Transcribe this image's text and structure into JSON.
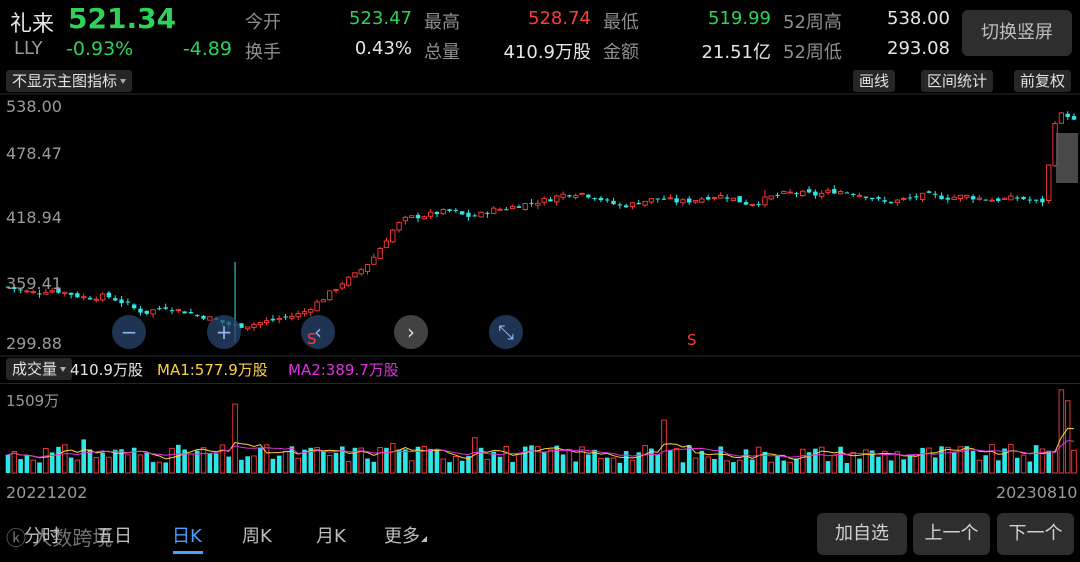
{
  "quote": {
    "name": "礼来",
    "price": "521.34",
    "ticker": "LLY",
    "change_pct": "-0.93%",
    "change": "-4.89",
    "stats": [
      {
        "label": "今开",
        "value": "523.47",
        "color": "#2ed25a"
      },
      {
        "label": "最高",
        "value": "528.74",
        "color": "#ff3b3b"
      },
      {
        "label": "最低",
        "value": "519.99",
        "color": "#2ed25a"
      },
      {
        "label": "52周高",
        "value": "538.00",
        "color": "#e6e6e6"
      },
      {
        "label": "换手",
        "value": "0.43%",
        "color": "#e6e6e6"
      },
      {
        "label": "总量",
        "value": "410.9万股",
        "color": "#e6e6e6"
      },
      {
        "label": "金额",
        "value": "21.51亿",
        "color": "#e6e6e6"
      },
      {
        "label": "52周低",
        "value": "293.08",
        "color": "#e6e6e6"
      }
    ],
    "switch_label": "切换竖屏"
  },
  "toolbar": {
    "indicator_label": "不显示主图指标",
    "draw_label": "画线",
    "range_stats_label": "区间统计",
    "adjust_label": "前复权"
  },
  "price_axis": [
    "538.00",
    "478.47",
    "418.94",
    "359.41",
    "299.88"
  ],
  "nav_icons": [
    "zoom-out-icon",
    "zoom-in-icon",
    "scroll-left-icon",
    "scroll-right-icon",
    "fit-icon"
  ],
  "volume": {
    "selector_label": "成交量",
    "current": "410.9万股",
    "ma1": "MA1:577.9万股",
    "ma2": "MA2:389.7万股",
    "max_label": "1509万",
    "ma1_color": "#ffd23f",
    "ma2_color": "#e030e0"
  },
  "dates": {
    "start": "20221202",
    "end": "20230810"
  },
  "tabs": [
    {
      "label": "分时",
      "active": false
    },
    {
      "label": "五日",
      "active": false
    },
    {
      "label": "日K",
      "active": true
    },
    {
      "label": "周K",
      "active": false
    },
    {
      "label": "月K",
      "active": false
    },
    {
      "label": "更多",
      "active": false
    }
  ],
  "buttons": {
    "add_watch": "加自选",
    "prev": "上一个",
    "next": "下一个"
  },
  "watermark": "人数跨境",
  "markers": [
    "S",
    "S"
  ],
  "colors": {
    "up": "#ff3b3b",
    "down": "#2ee6e6",
    "green": "#2ed25a",
    "accent_tab": "#4a9fff"
  },
  "chart_data": {
    "type": "candlestick",
    "x": [
      "20221202",
      "20230810"
    ],
    "ylim": [
      299.88,
      538.0
    ],
    "y_ticks": [
      538.0,
      478.47,
      418.94,
      359.41,
      299.88
    ],
    "close_path": [
      355,
      352,
      350,
      349,
      352,
      351,
      349,
      346,
      344,
      345,
      346,
      342,
      338,
      332,
      329,
      333,
      335,
      332,
      330,
      327,
      325,
      322,
      318,
      316,
      316,
      318,
      320,
      322,
      325,
      326,
      330,
      337,
      344,
      352,
      360,
      366,
      374,
      384,
      398,
      412,
      422,
      425,
      426,
      428,
      430,
      431,
      427,
      425,
      428,
      432,
      433,
      435,
      437,
      439,
      441,
      443,
      447,
      448,
      449,
      446,
      443,
      439,
      436,
      437,
      440,
      442,
      443,
      442,
      440,
      441,
      443,
      445,
      446,
      445,
      441,
      438,
      440,
      444,
      447,
      449,
      449,
      448,
      447,
      450,
      451,
      450,
      448,
      446,
      442,
      439,
      441,
      443,
      445,
      447,
      446,
      444,
      445,
      446,
      444,
      443,
      442,
      443,
      444,
      443,
      440,
      441,
      520,
      530,
      521
    ],
    "volume_max_wan": 1509,
    "volume_last_wan": 410.9,
    "ma1_last_wan": 577.9,
    "ma2_last_wan": 389.7
  }
}
